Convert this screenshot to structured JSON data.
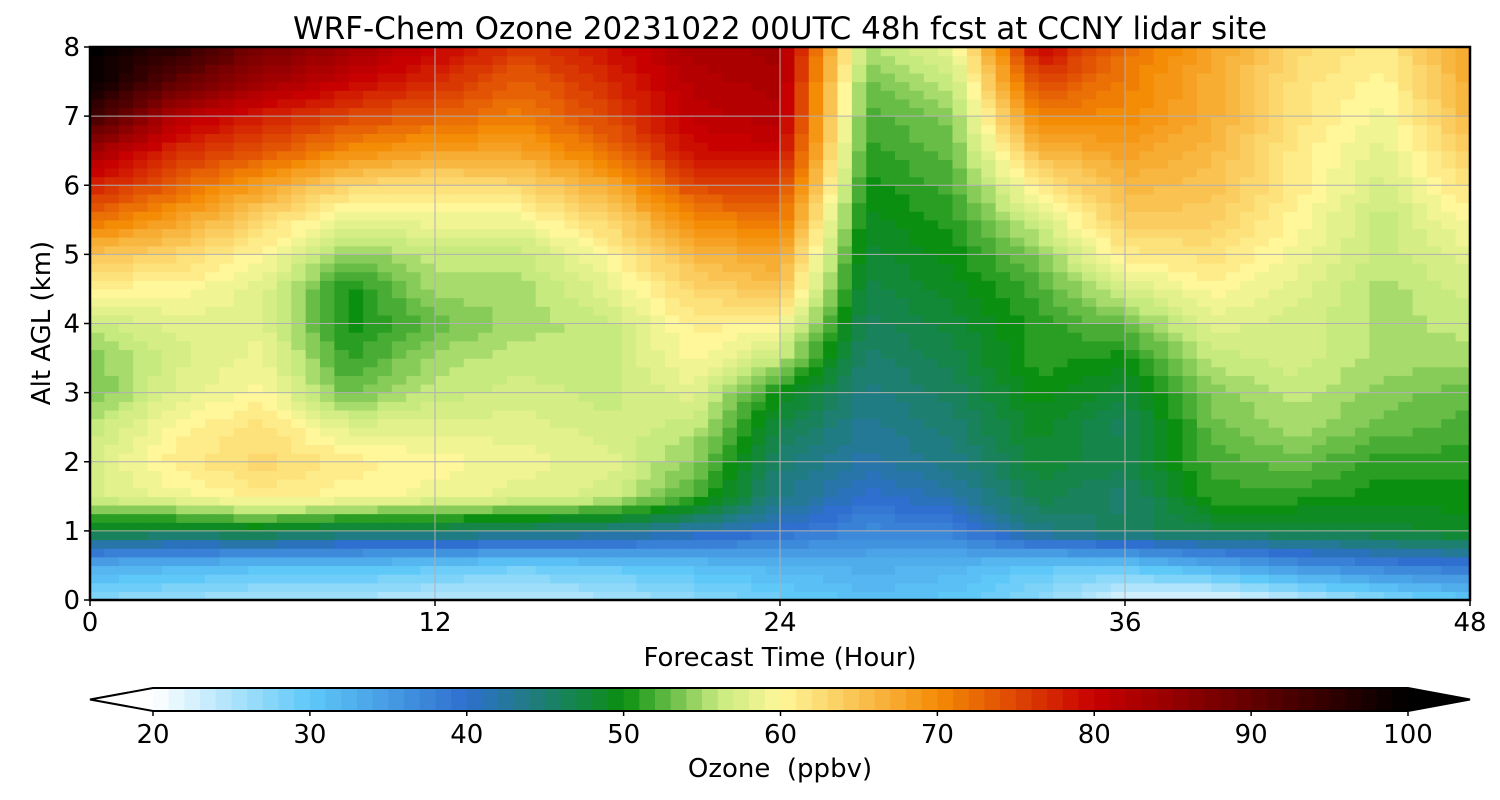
{
  "chart_data": {
    "type": "heatmap",
    "title": "WRF-Chem Ozone  20231022 00UTC 48h fcst at CCNY lidar site",
    "xlabel": "Forecast Time (Hour)",
    "ylabel": "Alt AGL (km)",
    "xlim": [
      0,
      48
    ],
    "ylim": [
      0,
      8
    ],
    "x_ticks": [
      "0",
      "12",
      "24",
      "36",
      "48"
    ],
    "y_ticks": [
      "0",
      "1",
      "2",
      "3",
      "4",
      "5",
      "6",
      "7",
      "8"
    ],
    "grid": true,
    "colorbar": {
      "label": "Ozone  (ppbv)",
      "min": 20,
      "max": 100,
      "ticks": [
        "20",
        "30",
        "40",
        "50",
        "60",
        "70",
        "80",
        "90",
        "100"
      ],
      "extend": "both",
      "colors": [
        "#ffffff",
        "#5ec8f8",
        "#2f6fcf",
        "#0a8f10",
        "#c6ea7e",
        "#fff79a",
        "#f48c06",
        "#c80000",
        "#000000"
      ],
      "stops": [
        20,
        30,
        40,
        50,
        56,
        60,
        70,
        80,
        100
      ]
    },
    "x": [
      0,
      3,
      6,
      9,
      12,
      15,
      18,
      21,
      24,
      27,
      30,
      33,
      36,
      39,
      42,
      45,
      48
    ],
    "y": [
      0,
      0.5,
      1,
      1.5,
      2,
      2.5,
      3,
      3.5,
      4,
      4.5,
      5,
      5.5,
      6,
      6.5,
      7,
      7.5,
      8
    ],
    "z": [
      [
        27,
        26,
        25,
        25,
        24,
        24,
        25,
        27,
        29,
        31,
        30,
        27,
        22,
        21,
        24,
        27,
        30
      ],
      [
        33,
        32,
        31,
        31,
        30,
        29,
        30,
        31,
        32,
        33,
        32,
        30,
        30,
        33,
        36,
        38,
        39
      ],
      [
        48,
        47,
        48,
        46,
        46,
        45,
        44,
        42,
        40,
        37,
        38,
        44,
        46,
        47,
        47,
        48,
        49
      ],
      [
        57,
        59,
        61,
        60,
        59,
        58,
        57,
        52,
        44,
        40,
        42,
        47,
        45,
        51,
        51,
        50,
        50
      ],
      [
        57,
        61,
        63,
        61,
        60,
        59,
        58,
        54,
        45,
        42,
        44,
        48,
        47,
        52,
        53,
        51,
        51
      ],
      [
        56,
        60,
        62,
        58,
        58,
        58,
        57,
        56,
        47,
        43,
        45,
        49,
        46,
        53,
        55,
        53,
        52
      ],
      [
        53,
        58,
        60,
        53,
        56,
        57,
        56,
        58,
        50,
        44,
        46,
        50,
        48,
        54,
        56,
        54,
        53
      ],
      [
        54,
        57,
        59,
        51,
        55,
        56,
        56,
        60,
        56,
        45,
        47,
        51,
        50,
        56,
        57,
        55,
        55
      ],
      [
        56,
        58,
        58,
        50,
        53,
        55,
        56,
        61,
        60,
        46,
        48,
        51,
        53,
        58,
        57,
        55,
        56
      ],
      [
        60,
        60,
        58,
        50,
        55,
        55,
        58,
        63,
        65,
        47,
        49,
        52,
        57,
        60,
        58,
        55,
        57
      ],
      [
        65,
        63,
        60,
        54,
        56,
        56,
        60,
        66,
        68,
        48,
        50,
        54,
        61,
        62,
        59,
        56,
        58
      ],
      [
        72,
        68,
        63,
        58,
        59,
        59,
        63,
        70,
        72,
        49,
        51,
        57,
        64,
        64,
        60,
        56,
        60
      ],
      [
        78,
        73,
        68,
        63,
        62,
        63,
        67,
        75,
        76,
        50,
        52,
        61,
        66,
        65,
        61,
        57,
        62
      ],
      [
        84,
        77,
        74,
        70,
        68,
        68,
        72,
        79,
        80,
        51,
        53,
        66,
        68,
        66,
        61,
        58,
        64
      ],
      [
        94,
        82,
        78,
        75,
        73,
        71,
        75,
        81,
        82,
        52,
        54,
        71,
        70,
        67,
        62,
        59,
        66
      ],
      [
        100,
        90,
        84,
        80,
        77,
        73,
        77,
        82,
        83,
        53,
        56,
        75,
        71,
        67,
        62,
        60,
        67
      ],
      [
        100,
        96,
        88,
        84,
        80,
        76,
        79,
        83,
        84,
        55,
        58,
        80,
        72,
        68,
        63,
        61,
        68
      ]
    ]
  }
}
